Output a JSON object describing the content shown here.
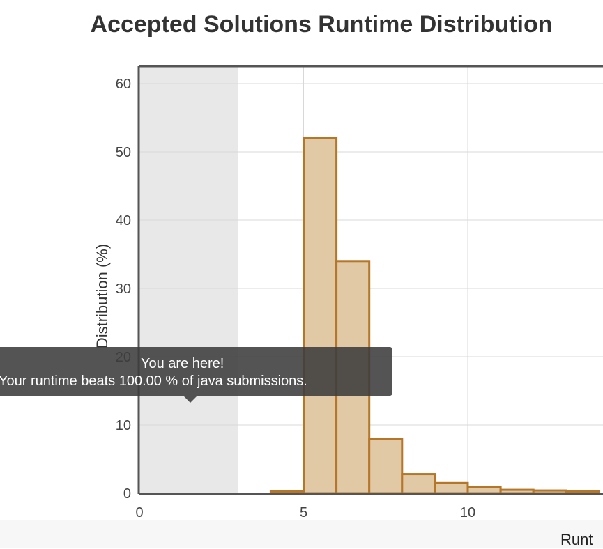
{
  "chart_data": {
    "type": "bar",
    "title": "Accepted Solutions Runtime Distribution",
    "ylabel": "Distribution (%)",
    "xlabel": "Runt",
    "xlim": [
      0,
      14
    ],
    "ylim": [
      0,
      62
    ],
    "xticks": [
      0,
      5,
      10
    ],
    "yticks": [
      0,
      10,
      20,
      30,
      40,
      50,
      60
    ],
    "grid": true,
    "highlight_range": [
      0,
      3
    ],
    "bars": [
      {
        "x0": 4,
        "x1": 5,
        "value": 0.3
      },
      {
        "x0": 5,
        "x1": 6,
        "value": 52
      },
      {
        "x0": 6,
        "x1": 7,
        "value": 34
      },
      {
        "x0": 7,
        "x1": 8,
        "value": 8
      },
      {
        "x0": 8,
        "x1": 9,
        "value": 2.8
      },
      {
        "x0": 9,
        "x1": 10,
        "value": 1.5
      },
      {
        "x0": 10,
        "x1": 11,
        "value": 0.9
      },
      {
        "x0": 11,
        "x1": 12,
        "value": 0.5
      },
      {
        "x0": 12,
        "x1": 13,
        "value": 0.4
      },
      {
        "x0": 13,
        "x1": 14,
        "value": 0.3
      }
    ],
    "colors": {
      "bar_fill": "#e1c9a6",
      "bar_stroke": "#b57628",
      "highlight": "#e8e8e8",
      "grid": "#d8d8d8",
      "axis": "#555555"
    }
  },
  "tooltip": {
    "line1": "You are here!",
    "line2": "Your runtime beats 100.00 % of java submissions."
  }
}
